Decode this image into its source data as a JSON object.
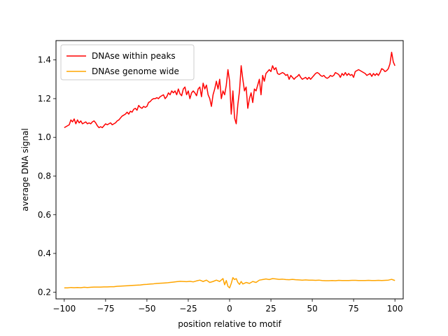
{
  "chart_data": {
    "type": "line",
    "title": "",
    "xlabel": "position relative to motif",
    "ylabel": "average DNA signal",
    "xlim": [
      -105,
      105
    ],
    "ylim": [
      0.165,
      1.5
    ],
    "xticks": [
      -100,
      -75,
      -50,
      -25,
      0,
      25,
      50,
      75,
      100
    ],
    "xtick_labels": [
      "−100",
      "−75",
      "−50",
      "−25",
      "0",
      "25",
      "50",
      "75",
      "100"
    ],
    "yticks": [
      0.2,
      0.4,
      0.6,
      0.8,
      1.0,
      1.2,
      1.4
    ],
    "ytick_labels": [
      "0.2",
      "0.4",
      "0.6",
      "0.8",
      "1.0",
      "1.2",
      "1.4"
    ],
    "grid": false,
    "legend_position": "top-left",
    "series": [
      {
        "name": "DNAse within peaks",
        "color": "#ff0000",
        "points": [
          [
            -100,
            1.05
          ],
          [
            -99,
            1.055
          ],
          [
            -98,
            1.06
          ],
          [
            -97,
            1.065
          ],
          [
            -96,
            1.09
          ],
          [
            -95,
            1.08
          ],
          [
            -94,
            1.095
          ],
          [
            -93,
            1.07
          ],
          [
            -92,
            1.09
          ],
          [
            -91,
            1.075
          ],
          [
            -90,
            1.085
          ],
          [
            -89,
            1.07
          ],
          [
            -88,
            1.075
          ],
          [
            -87,
            1.08
          ],
          [
            -86,
            1.07
          ],
          [
            -85,
            1.075
          ],
          [
            -84,
            1.07
          ],
          [
            -83,
            1.08
          ],
          [
            -82,
            1.085
          ],
          [
            -81,
            1.075
          ],
          [
            -80,
            1.06
          ],
          [
            -79,
            1.05
          ],
          [
            -78,
            1.055
          ],
          [
            -77,
            1.05
          ],
          [
            -76,
            1.06
          ],
          [
            -75,
            1.07
          ],
          [
            -74,
            1.065
          ],
          [
            -73,
            1.07
          ],
          [
            -72,
            1.075
          ],
          [
            -71,
            1.065
          ],
          [
            -70,
            1.07
          ],
          [
            -69,
            1.075
          ],
          [
            -68,
            1.085
          ],
          [
            -67,
            1.09
          ],
          [
            -66,
            1.1
          ],
          [
            -65,
            1.11
          ],
          [
            -64,
            1.115
          ],
          [
            -63,
            1.12
          ],
          [
            -62,
            1.13
          ],
          [
            -61,
            1.12
          ],
          [
            -60,
            1.135
          ],
          [
            -59,
            1.13
          ],
          [
            -58,
            1.145
          ],
          [
            -57,
            1.15
          ],
          [
            -56,
            1.14
          ],
          [
            -55,
            1.165
          ],
          [
            -54,
            1.155
          ],
          [
            -53,
            1.15
          ],
          [
            -52,
            1.16
          ],
          [
            -51,
            1.155
          ],
          [
            -50,
            1.16
          ],
          [
            -49,
            1.18
          ],
          [
            -48,
            1.185
          ],
          [
            -47,
            1.195
          ],
          [
            -46,
            1.2
          ],
          [
            -45,
            1.2
          ],
          [
            -44,
            1.205
          ],
          [
            -43,
            1.2
          ],
          [
            -42,
            1.21
          ],
          [
            -41,
            1.215
          ],
          [
            -40,
            1.22
          ],
          [
            -39,
            1.2
          ],
          [
            -38,
            1.21
          ],
          [
            -37,
            1.23
          ],
          [
            -36,
            1.22
          ],
          [
            -35,
            1.24
          ],
          [
            -34,
            1.23
          ],
          [
            -33,
            1.24
          ],
          [
            -32,
            1.22
          ],
          [
            -31,
            1.25
          ],
          [
            -30,
            1.225
          ],
          [
            -29,
            1.215
          ],
          [
            -28,
            1.25
          ],
          [
            -27,
            1.26
          ],
          [
            -26,
            1.22
          ],
          [
            -25,
            1.24
          ],
          [
            -24,
            1.2
          ],
          [
            -23,
            1.23
          ],
          [
            -22,
            1.24
          ],
          [
            -21,
            1.23
          ],
          [
            -20,
            1.215
          ],
          [
            -19,
            1.25
          ],
          [
            -18,
            1.26
          ],
          [
            -17,
            1.21
          ],
          [
            -16,
            1.28
          ],
          [
            -15,
            1.25
          ],
          [
            -14,
            1.27
          ],
          [
            -13,
            1.22
          ],
          [
            -12,
            1.2
          ],
          [
            -11,
            1.16
          ],
          [
            -10,
            1.22
          ],
          [
            -9,
            1.25
          ],
          [
            -8,
            1.29
          ],
          [
            -7,
            1.25
          ],
          [
            -6,
            1.3
          ],
          [
            -5,
            1.2
          ],
          [
            -4,
            1.24
          ],
          [
            -3,
            1.22
          ],
          [
            -2,
            1.27
          ],
          [
            -1,
            1.35
          ],
          [
            0,
            1.29
          ],
          [
            1,
            1.12
          ],
          [
            2,
            1.24
          ],
          [
            3,
            1.1
          ],
          [
            4,
            1.07
          ],
          [
            5,
            1.17
          ],
          [
            6,
            1.24
          ],
          [
            7,
            1.37
          ],
          [
            8,
            1.3
          ],
          [
            9,
            1.24
          ],
          [
            10,
            1.26
          ],
          [
            11,
            1.15
          ],
          [
            12,
            1.2
          ],
          [
            13,
            1.23
          ],
          [
            14,
            1.18
          ],
          [
            15,
            1.25
          ],
          [
            16,
            1.24
          ],
          [
            17,
            1.27
          ],
          [
            18,
            1.3
          ],
          [
            19,
            1.22
          ],
          [
            20,
            1.32
          ],
          [
            21,
            1.29
          ],
          [
            22,
            1.33
          ],
          [
            23,
            1.34
          ],
          [
            24,
            1.35
          ],
          [
            25,
            1.34
          ],
          [
            26,
            1.37
          ],
          [
            27,
            1.35
          ],
          [
            28,
            1.36
          ],
          [
            29,
            1.33
          ],
          [
            30,
            1.325
          ],
          [
            31,
            1.33
          ],
          [
            32,
            1.335
          ],
          [
            33,
            1.33
          ],
          [
            34,
            1.32
          ],
          [
            35,
            1.325
          ],
          [
            36,
            1.3
          ],
          [
            37,
            1.32
          ],
          [
            38,
            1.31
          ],
          [
            39,
            1.3
          ],
          [
            40,
            1.31
          ],
          [
            41,
            1.315
          ],
          [
            42,
            1.325
          ],
          [
            43,
            1.31
          ],
          [
            44,
            1.3
          ],
          [
            45,
            1.305
          ],
          [
            46,
            1.31
          ],
          [
            47,
            1.3
          ],
          [
            48,
            1.31
          ],
          [
            49,
            1.3
          ],
          [
            50,
            1.31
          ],
          [
            51,
            1.32
          ],
          [
            52,
            1.33
          ],
          [
            53,
            1.335
          ],
          [
            54,
            1.33
          ],
          [
            55,
            1.32
          ],
          [
            56,
            1.315
          ],
          [
            57,
            1.32
          ],
          [
            58,
            1.31
          ],
          [
            59,
            1.305
          ],
          [
            60,
            1.31
          ],
          [
            61,
            1.32
          ],
          [
            62,
            1.315
          ],
          [
            63,
            1.32
          ],
          [
            64,
            1.335
          ],
          [
            65,
            1.33
          ],
          [
            66,
            1.325
          ],
          [
            67,
            1.31
          ],
          [
            68,
            1.33
          ],
          [
            69,
            1.32
          ],
          [
            70,
            1.335
          ],
          [
            71,
            1.32
          ],
          [
            72,
            1.33
          ],
          [
            73,
            1.32
          ],
          [
            74,
            1.325
          ],
          [
            75,
            1.31
          ],
          [
            76,
            1.34
          ],
          [
            77,
            1.345
          ],
          [
            78,
            1.35
          ],
          [
            79,
            1.345
          ],
          [
            80,
            1.34
          ],
          [
            81,
            1.335
          ],
          [
            82,
            1.33
          ],
          [
            83,
            1.32
          ],
          [
            84,
            1.325
          ],
          [
            85,
            1.33
          ],
          [
            86,
            1.315
          ],
          [
            87,
            1.33
          ],
          [
            88,
            1.32
          ],
          [
            89,
            1.33
          ],
          [
            90,
            1.32
          ],
          [
            91,
            1.335
          ],
          [
            92,
            1.355
          ],
          [
            93,
            1.35
          ],
          [
            94,
            1.34
          ],
          [
            95,
            1.345
          ],
          [
            96,
            1.355
          ],
          [
            97,
            1.38
          ],
          [
            98,
            1.44
          ],
          [
            99,
            1.39
          ],
          [
            100,
            1.37
          ]
        ]
      },
      {
        "name": "DNAse genome wide",
        "color": "#ffa500",
        "points": [
          [
            -100,
            0.222
          ],
          [
            -98,
            0.222
          ],
          [
            -96,
            0.224
          ],
          [
            -94,
            0.223
          ],
          [
            -92,
            0.224
          ],
          [
            -90,
            0.223
          ],
          [
            -88,
            0.225
          ],
          [
            -86,
            0.224
          ],
          [
            -84,
            0.225
          ],
          [
            -82,
            0.226
          ],
          [
            -80,
            0.226
          ],
          [
            -78,
            0.226
          ],
          [
            -76,
            0.227
          ],
          [
            -74,
            0.227
          ],
          [
            -72,
            0.228
          ],
          [
            -70,
            0.228
          ],
          [
            -68,
            0.23
          ],
          [
            -66,
            0.231
          ],
          [
            -64,
            0.232
          ],
          [
            -62,
            0.233
          ],
          [
            -60,
            0.234
          ],
          [
            -58,
            0.235
          ],
          [
            -56,
            0.236
          ],
          [
            -54,
            0.237
          ],
          [
            -52,
            0.239
          ],
          [
            -50,
            0.24
          ],
          [
            -48,
            0.242
          ],
          [
            -46,
            0.243
          ],
          [
            -44,
            0.245
          ],
          [
            -42,
            0.246
          ],
          [
            -40,
            0.247
          ],
          [
            -38,
            0.248
          ],
          [
            -36,
            0.25
          ],
          [
            -34,
            0.252
          ],
          [
            -32,
            0.254
          ],
          [
            -30,
            0.256
          ],
          [
            -28,
            0.255
          ],
          [
            -26,
            0.254
          ],
          [
            -24,
            0.256
          ],
          [
            -22,
            0.253
          ],
          [
            -20,
            0.258
          ],
          [
            -18,
            0.262
          ],
          [
            -16,
            0.255
          ],
          [
            -14,
            0.262
          ],
          [
            -12,
            0.25
          ],
          [
            -10,
            0.255
          ],
          [
            -8,
            0.262
          ],
          [
            -6,
            0.255
          ],
          [
            -4,
            0.27
          ],
          [
            -3,
            0.238
          ],
          [
            -2,
            0.26
          ],
          [
            -1,
            0.23
          ],
          [
            0,
            0.222
          ],
          [
            1,
            0.245
          ],
          [
            2,
            0.275
          ],
          [
            3,
            0.265
          ],
          [
            4,
            0.27
          ],
          [
            5,
            0.25
          ],
          [
            6,
            0.24
          ],
          [
            7,
            0.255
          ],
          [
            8,
            0.242
          ],
          [
            10,
            0.25
          ],
          [
            12,
            0.245
          ],
          [
            14,
            0.255
          ],
          [
            16,
            0.25
          ],
          [
            18,
            0.262
          ],
          [
            20,
            0.265
          ],
          [
            22,
            0.268
          ],
          [
            24,
            0.265
          ],
          [
            26,
            0.27
          ],
          [
            28,
            0.268
          ],
          [
            30,
            0.266
          ],
          [
            32,
            0.267
          ],
          [
            34,
            0.265
          ],
          [
            36,
            0.264
          ],
          [
            38,
            0.266
          ],
          [
            40,
            0.264
          ],
          [
            42,
            0.263
          ],
          [
            44,
            0.262
          ],
          [
            46,
            0.263
          ],
          [
            48,
            0.262
          ],
          [
            50,
            0.262
          ],
          [
            52,
            0.261
          ],
          [
            54,
            0.262
          ],
          [
            56,
            0.26
          ],
          [
            58,
            0.259
          ],
          [
            60,
            0.259
          ],
          [
            62,
            0.26
          ],
          [
            64,
            0.259
          ],
          [
            66,
            0.261
          ],
          [
            68,
            0.26
          ],
          [
            70,
            0.26
          ],
          [
            72,
            0.26
          ],
          [
            74,
            0.261
          ],
          [
            76,
            0.261
          ],
          [
            78,
            0.26
          ],
          [
            80,
            0.26
          ],
          [
            82,
            0.26
          ],
          [
            84,
            0.261
          ],
          [
            86,
            0.26
          ],
          [
            88,
            0.26
          ],
          [
            90,
            0.261
          ],
          [
            92,
            0.26
          ],
          [
            94,
            0.261
          ],
          [
            96,
            0.262
          ],
          [
            98,
            0.266
          ],
          [
            100,
            0.26
          ]
        ]
      }
    ]
  }
}
